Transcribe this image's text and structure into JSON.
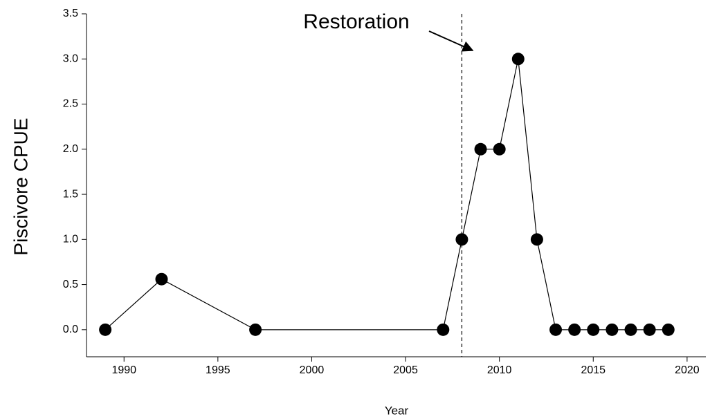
{
  "chart_data": {
    "type": "line",
    "x": [
      1989,
      1992,
      1997,
      2007,
      2008,
      2009,
      2010,
      2011,
      2012,
      2013,
      2014,
      2015,
      2016,
      2017,
      2018,
      2019
    ],
    "series": [
      {
        "name": "Piscivore CPUE",
        "color": "#000000",
        "values": [
          0,
          0.56,
          0,
          0,
          1,
          2,
          2,
          3,
          1,
          0,
          0,
          0,
          0,
          0,
          0,
          0
        ]
      }
    ],
    "x_label": "Year",
    "y_label": "Piscivore CPUE",
    "xlim": [
      1988,
      2021
    ],
    "xticks": [
      1990,
      1995,
      2000,
      2005,
      2010,
      2015,
      2020
    ],
    "ylim": [
      -0.3,
      3.5
    ],
    "yticks": [
      {
        "value": 0,
        "label": "0.0"
      },
      {
        "value": 0.5,
        "label": "0.5"
      },
      {
        "value": 1,
        "label": "1.0"
      },
      {
        "value": 1.5,
        "label": "1.5"
      },
      {
        "value": 2,
        "label": "2.0"
      },
      {
        "value": 2.5,
        "label": "2.5"
      },
      {
        "value": 3,
        "label": "3.0"
      },
      {
        "value": 3.5,
        "label": "3.5"
      }
    ],
    "vline": 2008,
    "annotation": "Restoration"
  }
}
